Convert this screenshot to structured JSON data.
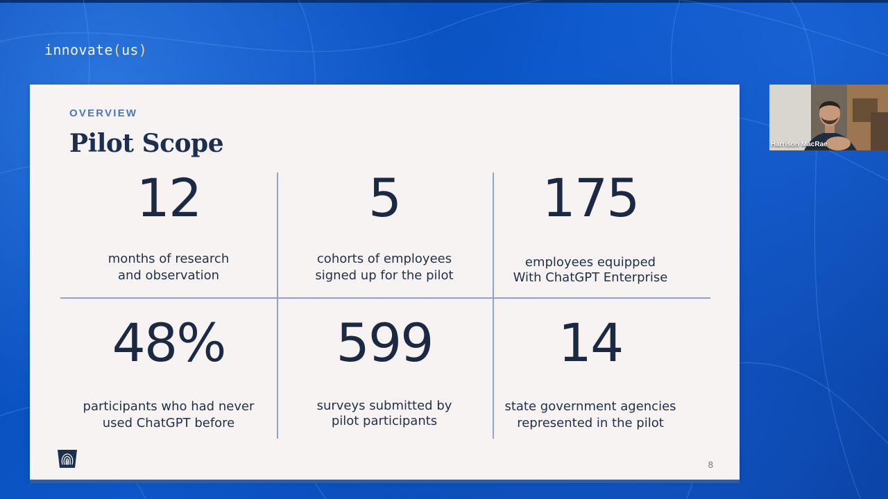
{
  "brand": {
    "prefix": "innovate",
    "open_paren": "(",
    "word": "us",
    "close_paren": ")"
  },
  "slide": {
    "eyebrow": "OVERVIEW",
    "title": "Pilot Scope",
    "page_number": "8",
    "stats": [
      {
        "value": "12",
        "label": "months of research\nand observation"
      },
      {
        "value": "5",
        "label": "cohorts of employees\nsigned up for the pilot"
      },
      {
        "value": "175",
        "label": "employees equipped\nWith ChatGPT Enterprise"
      },
      {
        "value": "48%",
        "label": "participants who had never\nused ChatGPT before"
      },
      {
        "value": "599",
        "label": "surveys submitted by\npilot participants"
      },
      {
        "value": "14",
        "label": "state government agencies\nrepresented in the pilot"
      }
    ]
  },
  "webcam": {
    "participant_name": "Harrison MacRae"
  },
  "icons": {
    "logo": "keystone-fingerprint-icon"
  },
  "colors": {
    "background_blue": "#0b56c8",
    "slide_background": "#f7f3f2",
    "title_navy": "#1d2f4f",
    "eyebrow_blue": "#4a78b7",
    "divider": "#8ea3c9",
    "brand_accent": "#ffd36e"
  }
}
